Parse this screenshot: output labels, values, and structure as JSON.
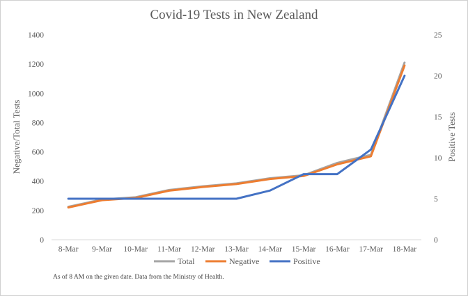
{
  "chart_data": {
    "type": "line",
    "title": "Covid-19  Tests in New Zealand",
    "categories": [
      "8-Mar",
      "9-Mar",
      "10-Mar",
      "11-Mar",
      "12-Mar",
      "13-Mar",
      "14-Mar",
      "15-Mar",
      "16-Mar",
      "17-Mar",
      "18-Mar"
    ],
    "ylabel": "Negative/Total Tests",
    "y2label": "Positive Tests",
    "ylim": [
      0,
      1400
    ],
    "y2lim": [
      0,
      25
    ],
    "yticks": [
      "0",
      "200",
      "400",
      "600",
      "800",
      "1000",
      "1200",
      "1400"
    ],
    "y2ticks": [
      "0",
      "5",
      "10",
      "15",
      "20",
      "25"
    ],
    "grid": false,
    "legend_position": "bottom",
    "series": [
      {
        "name": "Total",
        "axis": "left",
        "color": "#a5a5a5",
        "values": [
          225,
          275,
          290,
          340,
          365,
          385,
          420,
          440,
          525,
          580,
          1210
        ]
      },
      {
        "name": "Negative",
        "axis": "left",
        "color": "#ed7d31",
        "values": [
          220,
          270,
          285,
          335,
          360,
          380,
          415,
          435,
          515,
          570,
          1190
        ]
      },
      {
        "name": "Positive",
        "axis": "right",
        "color": "#4472c4",
        "values": [
          5,
          5,
          5,
          5,
          5,
          5,
          6,
          8,
          8,
          11,
          20
        ]
      }
    ],
    "footnote": "As of 8 AM on the given date. Data from the Ministry  of Health."
  }
}
